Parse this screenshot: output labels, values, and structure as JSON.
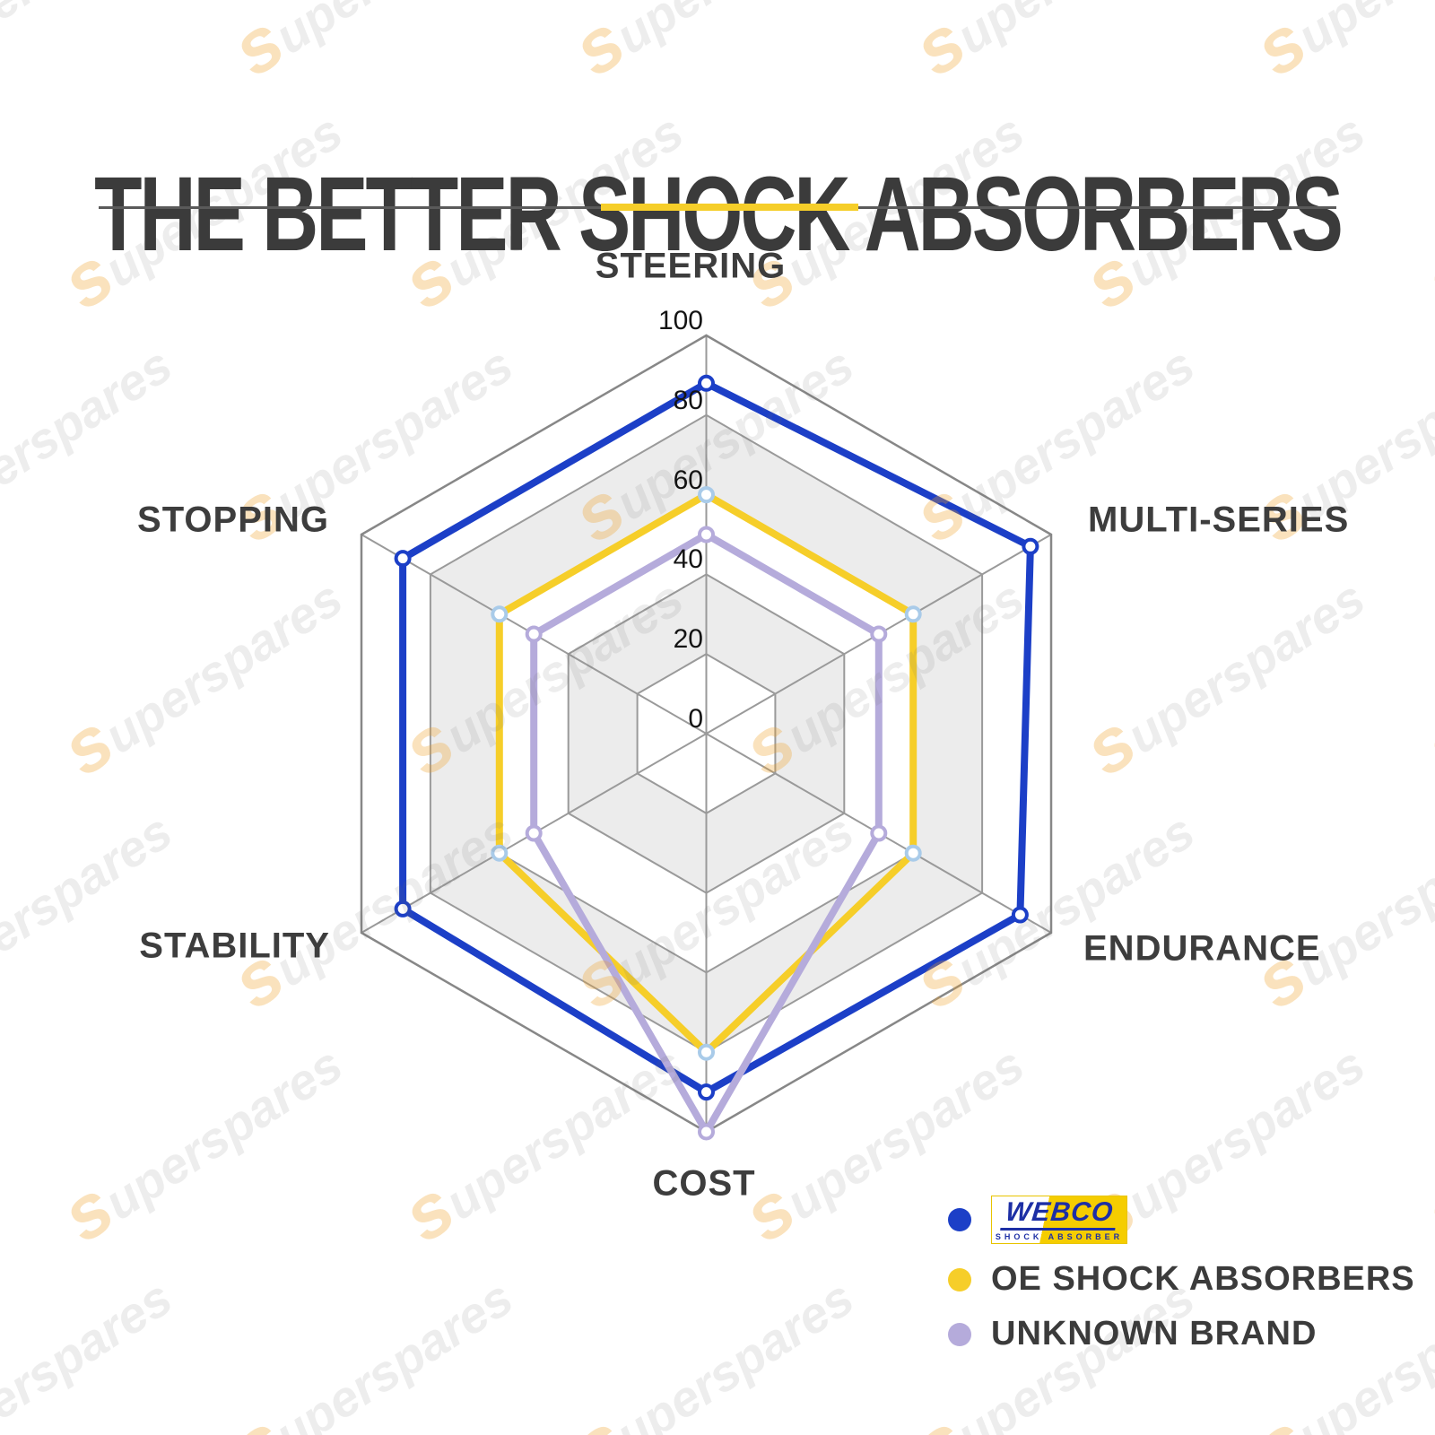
{
  "title": "THE BETTER SHOCK ABSORBERS",
  "accent_color": "#F6CE29",
  "watermark_text": "superspares",
  "chart_data": {
    "type": "radar",
    "axes": [
      "STEERING",
      "MULTI-SERIES",
      "ENDURANCE",
      "COST",
      "STABILITY",
      "STOPPING"
    ],
    "axis_range": [
      0,
      100
    ],
    "ticks": [
      100,
      80,
      60,
      40,
      20,
      0
    ],
    "grid": "hexagonal rings every 20 units; bands 20-40 and 60-80 shaded light gray; radial spokes to each vertex",
    "legend_position": "bottom-right",
    "series": [
      {
        "name": "WEBCO SHOCK ABSORBER",
        "color": "#1C3FC7",
        "marker_color": "#1C3FC7",
        "values": [
          88,
          94,
          91,
          90,
          88,
          88
        ]
      },
      {
        "name": "OE SHOCK ABSORBERS",
        "color": "#F6CE29",
        "marker_color": "#A9CBE9",
        "values": [
          60,
          60,
          60,
          80,
          60,
          60
        ]
      },
      {
        "name": "UNKNOWN BRAND",
        "color": "#B5ABDB",
        "marker_color": "#B5ABDB",
        "values": [
          50,
          50,
          50,
          100,
          50,
          50
        ]
      }
    ]
  },
  "legend": {
    "items": [
      {
        "dot_color": "#1C3FC7",
        "type": "logo",
        "logo_top": "WEBCO",
        "logo_bottom": "SHOCK ABSORBER"
      },
      {
        "dot_color": "#F6CE29",
        "label": "OE SHOCK ABSORBERS"
      },
      {
        "dot_color": "#B5ABDB",
        "label": "UNKNOWN BRAND"
      }
    ]
  }
}
